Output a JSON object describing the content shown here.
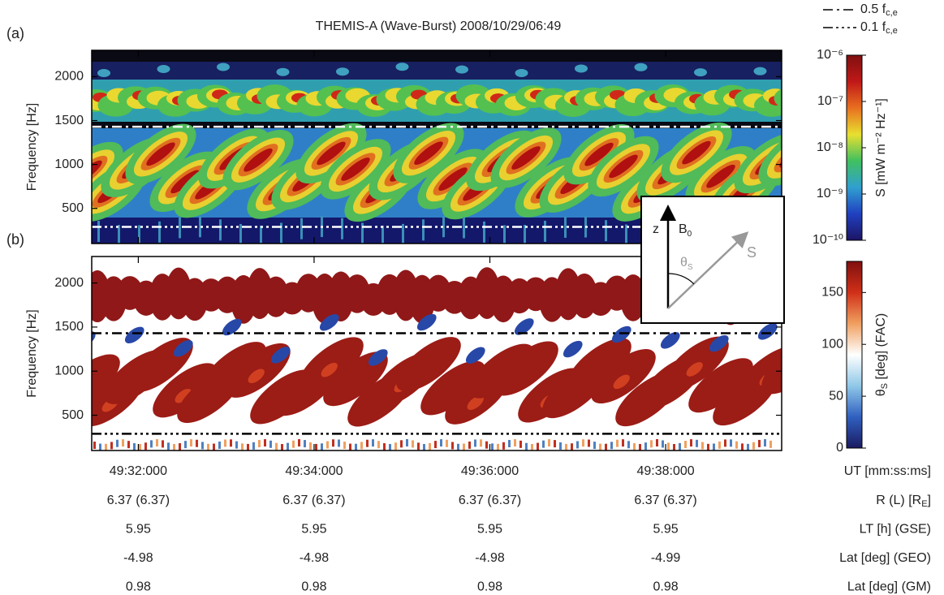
{
  "chart_data": [
    {
      "type": "spectrogram",
      "panel_label": "(a)",
      "title": "THEMIS-A (Wave-Burst) 2008/10/29/06:49",
      "ylabel": "Frequency [Hz]",
      "ylim": [
        100,
        2300
      ],
      "yticks": [
        500,
        1000,
        1500,
        2000
      ],
      "xlim": [
        31.47,
        39.32
      ],
      "xticks": [
        {
          "value": 32,
          "label": "49:32:000"
        },
        {
          "value": 34,
          "label": "49:34:000"
        },
        {
          "value": 36,
          "label": "49:36:000"
        },
        {
          "value": 38,
          "label": "49:38:000"
        }
      ],
      "lines": [
        {
          "value": 1430,
          "style": "dash-dot",
          "color": "#ffffff"
        },
        {
          "value": 290,
          "style": "dash-dot-dot",
          "color": "#ffffff"
        }
      ],
      "colorbar": {
        "scale": "log",
        "lim": [
          1e-10,
          1e-06
        ],
        "ticks": [
          {
            "value": 1e-06,
            "label": "10⁻⁶"
          },
          {
            "value": 1e-07,
            "label": "10⁻⁷"
          },
          {
            "value": 1e-08,
            "label": "10⁻⁸"
          },
          {
            "value": 1e-09,
            "label": "10⁻⁹"
          },
          {
            "value": 1e-10,
            "label": "10⁻¹⁰"
          }
        ],
        "label": [
          {
            "text": "S [mW m⁻² Hz⁻¹]"
          }
        ],
        "colors": [
          "#1c1464",
          "#2040c0",
          "#30a0d0",
          "#40c060",
          "#e8e030",
          "#e87020",
          "#c01818",
          "#801010"
        ]
      }
    },
    {
      "type": "spectrogram",
      "panel_label": "(b)",
      "ylabel": "Frequency [Hz]",
      "ylim": [
        100,
        2300
      ],
      "yticks": [
        500,
        1000,
        1500,
        2000
      ],
      "xlim": [
        31.47,
        39.32
      ],
      "xticks": [
        {
          "value": 32,
          "label": "49:32:000"
        },
        {
          "value": 34,
          "label": "49:34:000"
        },
        {
          "value": 36,
          "label": "49:36:000"
        },
        {
          "value": 38,
          "label": "49:38:000"
        }
      ],
      "xlabel": "UT [mm:ss:ms]",
      "lines": [
        {
          "value": 1430,
          "style": "dash-dot",
          "color": "#000000"
        },
        {
          "value": 290,
          "style": "dash-dot-dot",
          "color": "#000000"
        }
      ],
      "colorbar": {
        "scale": "linear",
        "lim": [
          0,
          180
        ],
        "ticks": [
          0,
          50,
          100,
          150
        ],
        "label": [
          {
            "text": "θ"
          },
          {
            "text": "S",
            "sub": true
          },
          {
            "text": " [deg] (FAC)"
          }
        ],
        "colors": [
          "#1a1a60",
          "#3060c0",
          "#90c8e8",
          "#ffffff",
          "#f0a060",
          "#d03018",
          "#801010"
        ]
      }
    }
  ],
  "legend": [
    {
      "text": "0.5 f",
      "sub": "c,e",
      "style": "dash-dot"
    },
    {
      "text": "0.1 f",
      "sub": "c,e",
      "style": "dash-dot-dot"
    }
  ],
  "inset": {
    "z": "z",
    "b": "B",
    "b_sub": "0",
    "theta": "θ",
    "theta_sub": "S",
    "s": "S"
  },
  "orbit": {
    "rows": [
      {
        "label": [
          {
            "text": "R (L) [R"
          },
          {
            "text": "E",
            "sub": true
          },
          {
            "text": "]"
          }
        ],
        "values": [
          "6.37 (6.37)",
          "6.37 (6.37)",
          "6.37 (6.37)",
          "6.37 (6.37)"
        ]
      },
      {
        "label": [
          {
            "text": "LT [h] (GSE)"
          }
        ],
        "values": [
          "5.95",
          "5.95",
          "5.95",
          "5.95"
        ]
      },
      {
        "label": [
          {
            "text": "Lat [deg] (GEO)"
          }
        ],
        "values": [
          "-4.98",
          "-4.98",
          "-4.98",
          "-4.99"
        ]
      },
      {
        "label": [
          {
            "text": "Lat [deg] (GM)"
          }
        ],
        "values": [
          "0.98",
          "0.98",
          "0.98",
          "0.98"
        ]
      }
    ]
  }
}
